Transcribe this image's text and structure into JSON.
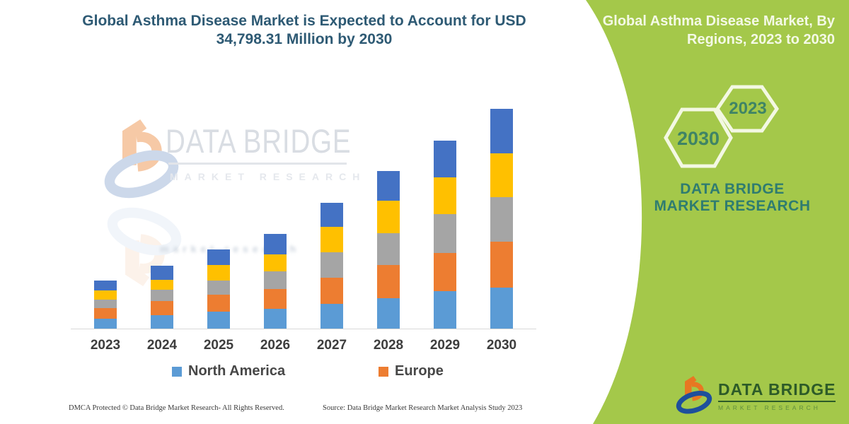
{
  "header": {
    "title_line1": "Global Asthma Disease Market is Expected to Account for USD",
    "title_line2": "34,798.31 Million by 2030"
  },
  "side_panel": {
    "title": "Global Asthma Disease Market, By Regions, 2023 to 2030",
    "hexagons": [
      {
        "label": "2030"
      },
      {
        "label": "2023"
      }
    ],
    "brand": "DATA BRIDGE MARKET RESEARCH",
    "logo": {
      "name": "DATA BRIDGE",
      "subname": "MARKET RESEARCH"
    }
  },
  "watermark": {
    "line1": "DATA BRIDGE",
    "line2": "MARKET RESEARCH",
    "blur_line": "market research"
  },
  "footer": {
    "dmca": "DMCA Protected © Data Bridge Market Research-  All Rights Reserved.",
    "source": "Source: Data Bridge Market Research  Market Analysis Study 2023"
  },
  "legend": [
    {
      "label": "North America",
      "color": "#5B9BD5"
    },
    {
      "label": "Europe",
      "color": "#ED7D31"
    }
  ],
  "colors": {
    "panel_green": "#a4c84a",
    "title_teal": "#2e5a74",
    "hex_outline": "#f3f8e3",
    "hex_year_text": "#3f8465",
    "brand_teal": "#2f7c70",
    "logo_dark_green": "#2d5b28",
    "axis_line": "#d9d9d9"
  },
  "chart_data": {
    "type": "bar",
    "stacked": true,
    "title": "Global Asthma Disease Market is Expected to Account for USD 34,798.31 Million by 2030",
    "unit": "USD Million",
    "categories": [
      "2023",
      "2024",
      "2025",
      "2026",
      "2027",
      "2028",
      "2029",
      "2030"
    ],
    "series": [
      {
        "name": "North America",
        "color": "#5B9BD5",
        "values": [
          1600,
          2090,
          2720,
          3100,
          3950,
          4850,
          5960,
          6500
        ]
      },
      {
        "name": "Europe",
        "color": "#ED7D31",
        "values": [
          1680,
          2240,
          2620,
          3170,
          4070,
          5260,
          5980,
          7330
        ]
      },
      {
        "name": "Unlabeled (gray)",
        "color": "#A5A5A5",
        "values": [
          1310,
          1860,
          2240,
          2800,
          4090,
          5040,
          6150,
          7020
        ]
      },
      {
        "name": "Unlabeled (yellow)",
        "color": "#FFC000",
        "values": [
          1490,
          1500,
          2500,
          2720,
          4030,
          5110,
          5850,
          6950
        ]
      },
      {
        "name": "Unlabeled (dark blue)",
        "color": "#4472C4",
        "values": [
          1500,
          2270,
          2460,
          3210,
          3850,
          4670,
          5900,
          7000
        ]
      }
    ],
    "totals_estimated": [
      7580,
      9960,
      12540,
      15000,
      19990,
      24930,
      29840,
      34800
    ],
    "anchor": "2030 total = 34798.31 from title; other values estimated from bar heights",
    "legend_visible": [
      "North America",
      "Europe"
    ],
    "ylim": [
      0,
      36000
    ],
    "gridlines": false,
    "legend_position": "bottom"
  }
}
